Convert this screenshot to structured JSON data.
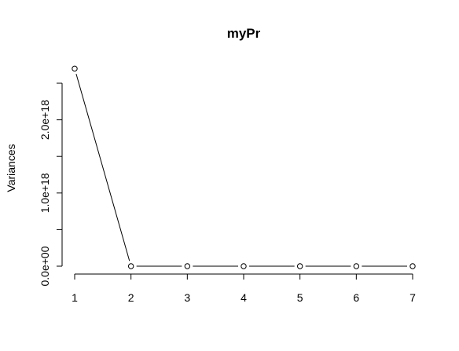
{
  "chart_data": {
    "type": "line",
    "title": "myPr",
    "xlabel": "",
    "ylabel": "Variances",
    "x": [
      1,
      2,
      3,
      4,
      5,
      6,
      7
    ],
    "xticks": [
      "1",
      "2",
      "3",
      "4",
      "5",
      "6",
      "7"
    ],
    "xlim": [
      1,
      7
    ],
    "y": [
      2.7e+18,
      0,
      0,
      0,
      0,
      0,
      0
    ],
    "ylim": [
      0,
      2.5e+18
    ],
    "yticks": [
      0,
      5e+17,
      1e+18,
      1.5e+18,
      2e+18,
      2.5e+18
    ],
    "ytick_labels": [
      "0.0e+00",
      "",
      "1.0e+18",
      "",
      "2.0e+18",
      ""
    ],
    "grid": false,
    "marker": "open-circle"
  }
}
